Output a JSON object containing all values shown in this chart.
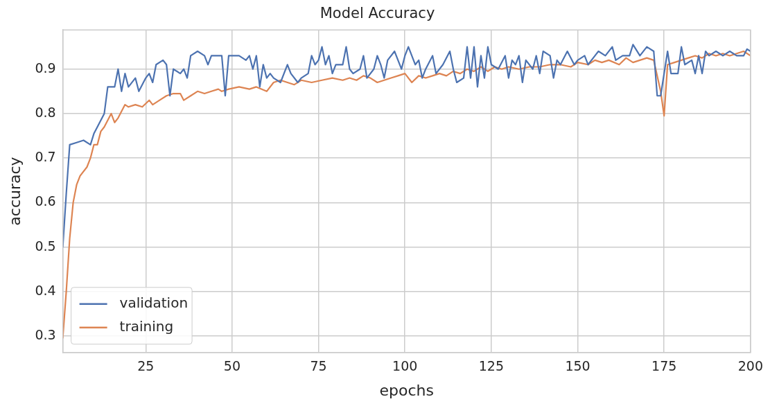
{
  "chart_data": {
    "type": "line",
    "title": "Model Accuracy",
    "xlabel": "epochs",
    "ylabel": "accuracy",
    "xlim": [
      1,
      200
    ],
    "ylim": [
      0.263,
      0.988
    ],
    "xticks": [
      25,
      50,
      75,
      100,
      125,
      150,
      175,
      200
    ],
    "yticks": [
      0.3,
      0.4,
      0.5,
      0.6,
      0.7,
      0.8,
      0.9
    ],
    "grid": true,
    "legend": "bottom left",
    "marker": "none",
    "line_style": "solid",
    "series": [
      {
        "name": "validation",
        "color": "#4c72b0",
        "x": [
          1,
          2,
          3,
          5,
          7,
          9,
          10,
          11,
          13,
          14,
          16,
          17,
          18,
          19,
          20,
          22,
          23,
          25,
          26,
          27,
          28,
          30,
          31,
          32,
          33,
          35,
          36,
          37,
          38,
          40,
          42,
          43,
          44,
          47,
          48,
          49,
          52,
          54,
          55,
          56,
          57,
          58,
          59,
          60,
          61,
          62,
          64,
          66,
          67,
          69,
          70,
          72,
          73,
          74,
          75,
          76,
          77,
          78,
          79,
          80,
          82,
          83,
          84,
          85,
          87,
          88,
          89,
          91,
          92,
          93,
          94,
          95,
          97,
          99,
          100,
          101,
          103,
          104,
          105,
          106,
          108,
          109,
          111,
          113,
          114,
          115,
          117,
          118,
          119,
          120,
          121,
          122,
          123,
          124,
          125,
          127,
          129,
          130,
          131,
          132,
          133,
          134,
          135,
          137,
          138,
          139,
          140,
          142,
          143,
          144,
          145,
          147,
          149,
          150,
          152,
          153,
          155,
          156,
          158,
          160,
          161,
          163,
          165,
          166,
          168,
          170,
          172,
          173,
          174,
          175,
          176,
          177,
          179,
          180,
          181,
          183,
          184,
          185,
          186,
          187,
          188,
          190,
          192,
          194,
          196,
          198,
          199,
          200
        ],
        "values": [
          0.5,
          0.62,
          0.73,
          0.735,
          0.74,
          0.73,
          0.755,
          0.77,
          0.8,
          0.86,
          0.86,
          0.9,
          0.85,
          0.89,
          0.86,
          0.88,
          0.85,
          0.88,
          0.89,
          0.87,
          0.91,
          0.92,
          0.91,
          0.84,
          0.9,
          0.89,
          0.9,
          0.88,
          0.93,
          0.94,
          0.93,
          0.91,
          0.93,
          0.93,
          0.84,
          0.93,
          0.93,
          0.92,
          0.93,
          0.9,
          0.93,
          0.86,
          0.91,
          0.88,
          0.89,
          0.88,
          0.87,
          0.91,
          0.89,
          0.87,
          0.88,
          0.89,
          0.93,
          0.91,
          0.92,
          0.95,
          0.91,
          0.93,
          0.89,
          0.91,
          0.91,
          0.95,
          0.9,
          0.89,
          0.9,
          0.93,
          0.88,
          0.9,
          0.93,
          0.91,
          0.88,
          0.92,
          0.94,
          0.9,
          0.93,
          0.95,
          0.91,
          0.92,
          0.88,
          0.9,
          0.93,
          0.89,
          0.91,
          0.94,
          0.9,
          0.87,
          0.88,
          0.95,
          0.88,
          0.95,
          0.86,
          0.93,
          0.88,
          0.95,
          0.91,
          0.9,
          0.93,
          0.88,
          0.92,
          0.91,
          0.93,
          0.87,
          0.92,
          0.9,
          0.93,
          0.89,
          0.94,
          0.93,
          0.88,
          0.92,
          0.91,
          0.94,
          0.91,
          0.92,
          0.93,
          0.91,
          0.93,
          0.94,
          0.93,
          0.95,
          0.92,
          0.93,
          0.93,
          0.955,
          0.93,
          0.95,
          0.94,
          0.84,
          0.84,
          0.89,
          0.94,
          0.89,
          0.89,
          0.95,
          0.91,
          0.92,
          0.89,
          0.93,
          0.89,
          0.94,
          0.93,
          0.94,
          0.93,
          0.94,
          0.93,
          0.93,
          0.945,
          0.94
        ]
      },
      {
        "name": "training",
        "color": "#dd8452",
        "x": [
          1,
          2,
          3,
          4,
          5,
          6,
          8,
          9,
          10,
          11,
          12,
          13,
          15,
          16,
          17,
          19,
          20,
          22,
          24,
          26,
          27,
          29,
          31,
          33,
          35,
          36,
          38,
          40,
          42,
          44,
          46,
          47,
          49,
          52,
          55,
          57,
          60,
          62,
          64,
          66,
          68,
          70,
          73,
          76,
          79,
          82,
          84,
          86,
          88,
          90,
          92,
          94,
          96,
          98,
          100,
          102,
          104,
          106,
          108,
          110,
          112,
          114,
          116,
          118,
          120,
          122,
          124,
          126,
          128,
          130,
          133,
          136,
          139,
          142,
          145,
          148,
          150,
          153,
          155,
          157,
          159,
          162,
          164,
          166,
          168,
          170,
          172,
          174,
          175,
          176,
          178,
          180,
          182,
          184,
          186,
          188,
          190,
          192,
          194,
          196,
          198,
          200
        ],
        "values": [
          0.296,
          0.4,
          0.52,
          0.6,
          0.64,
          0.66,
          0.68,
          0.7,
          0.73,
          0.73,
          0.76,
          0.77,
          0.8,
          0.78,
          0.79,
          0.82,
          0.815,
          0.82,
          0.815,
          0.83,
          0.82,
          0.83,
          0.84,
          0.845,
          0.845,
          0.83,
          0.84,
          0.85,
          0.845,
          0.85,
          0.855,
          0.85,
          0.855,
          0.86,
          0.855,
          0.86,
          0.85,
          0.87,
          0.875,
          0.87,
          0.865,
          0.875,
          0.87,
          0.875,
          0.88,
          0.875,
          0.88,
          0.875,
          0.885,
          0.88,
          0.87,
          0.875,
          0.88,
          0.885,
          0.89,
          0.87,
          0.885,
          0.88,
          0.885,
          0.89,
          0.885,
          0.895,
          0.89,
          0.9,
          0.895,
          0.905,
          0.895,
          0.905,
          0.9,
          0.905,
          0.9,
          0.905,
          0.905,
          0.91,
          0.91,
          0.905,
          0.915,
          0.91,
          0.92,
          0.915,
          0.92,
          0.91,
          0.925,
          0.915,
          0.92,
          0.925,
          0.92,
          0.85,
          0.795,
          0.91,
          0.915,
          0.92,
          0.925,
          0.93,
          0.925,
          0.935,
          0.93,
          0.935,
          0.93,
          0.935,
          0.94,
          0.93
        ]
      }
    ]
  }
}
